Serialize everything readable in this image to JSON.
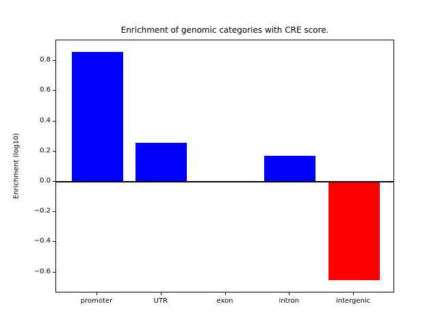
{
  "chart_data": {
    "type": "bar",
    "title": "Enrichment of genomic categories with CRE score.",
    "ylabel": "Enrichment (log10)",
    "xlabel": "",
    "categories": [
      "promoter",
      "UTR",
      "exon",
      "intron",
      "intergenic"
    ],
    "values": [
      0.86,
      0.26,
      0.0,
      0.17,
      -0.65
    ],
    "bar_colors": [
      "#0000ff",
      "#0000ff",
      "#0000ff",
      "#0000ff",
      "#ff0000"
    ],
    "positive_color": "#0000ff",
    "negative_color": "#ff0000",
    "bar_width": 0.8,
    "ylim": [
      -0.737,
      0.936
    ],
    "xlim": [
      -0.64,
      4.64
    ],
    "yticks": [
      0.8,
      0.6,
      0.4,
      0.2,
      0.0,
      -0.2,
      -0.4,
      -0.6
    ],
    "ytick_labels": [
      "0.8",
      "0.6",
      "0.4",
      "0.2",
      "0.0",
      "−0.2",
      "−0.4",
      "−0.6"
    ],
    "zero_line": true,
    "zero_line_color": "#000000",
    "axis_color": "#000000",
    "background_color": "#ffffff",
    "grid": false,
    "legend": null
  }
}
